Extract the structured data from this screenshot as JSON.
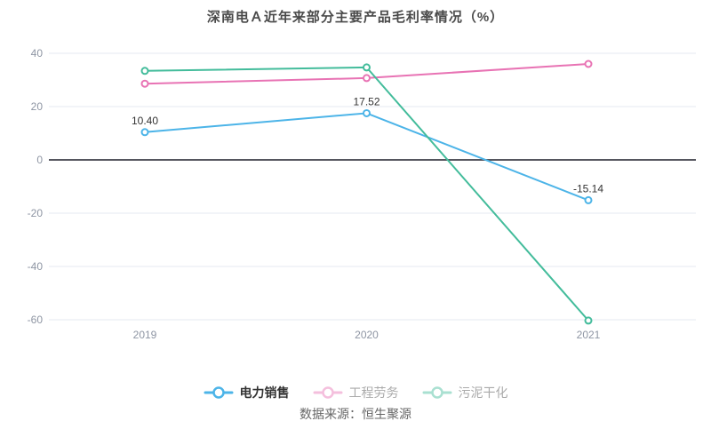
{
  "title": "深南电Ａ近年来部分主要产品毛利率情况（%）",
  "source": "数据来源：恒生聚源",
  "colors": {
    "background": "#ffffff",
    "grid_line": "#e4e9f2",
    "zero_line": "#55565e",
    "tick_text": "#8e95a3",
    "data_label_text": "#333333",
    "title_text": "#4a4a4a",
    "inactive_legend_text": "#aaaaaa",
    "source_text": "#666666"
  },
  "chart_data": {
    "type": "line",
    "categories": [
      "2019",
      "2020",
      "2021"
    ],
    "series": [
      {
        "id": "power-sales",
        "name": "电力销售",
        "values": [
          10.4,
          17.52,
          -15.14
        ],
        "point_labels": [
          "10.40",
          "17.52",
          "-15.14"
        ],
        "color": "#4cb4e8",
        "active": true
      },
      {
        "id": "engineering-labor",
        "name": "工程劳务",
        "values": [
          28.6,
          30.7,
          36.0
        ],
        "color": "#e873b4",
        "active": false
      },
      {
        "id": "sludge-drying",
        "name": "污泥干化",
        "values": [
          33.4,
          34.7,
          -60.3
        ],
        "color": "#43bc9b",
        "active": false
      }
    ],
    "ylim": [
      -60,
      40
    ],
    "yticks": [
      40,
      20,
      0,
      -20,
      -40,
      -60
    ],
    "grid": true,
    "marker": "hollow-circle",
    "legend_position": "bottom"
  }
}
